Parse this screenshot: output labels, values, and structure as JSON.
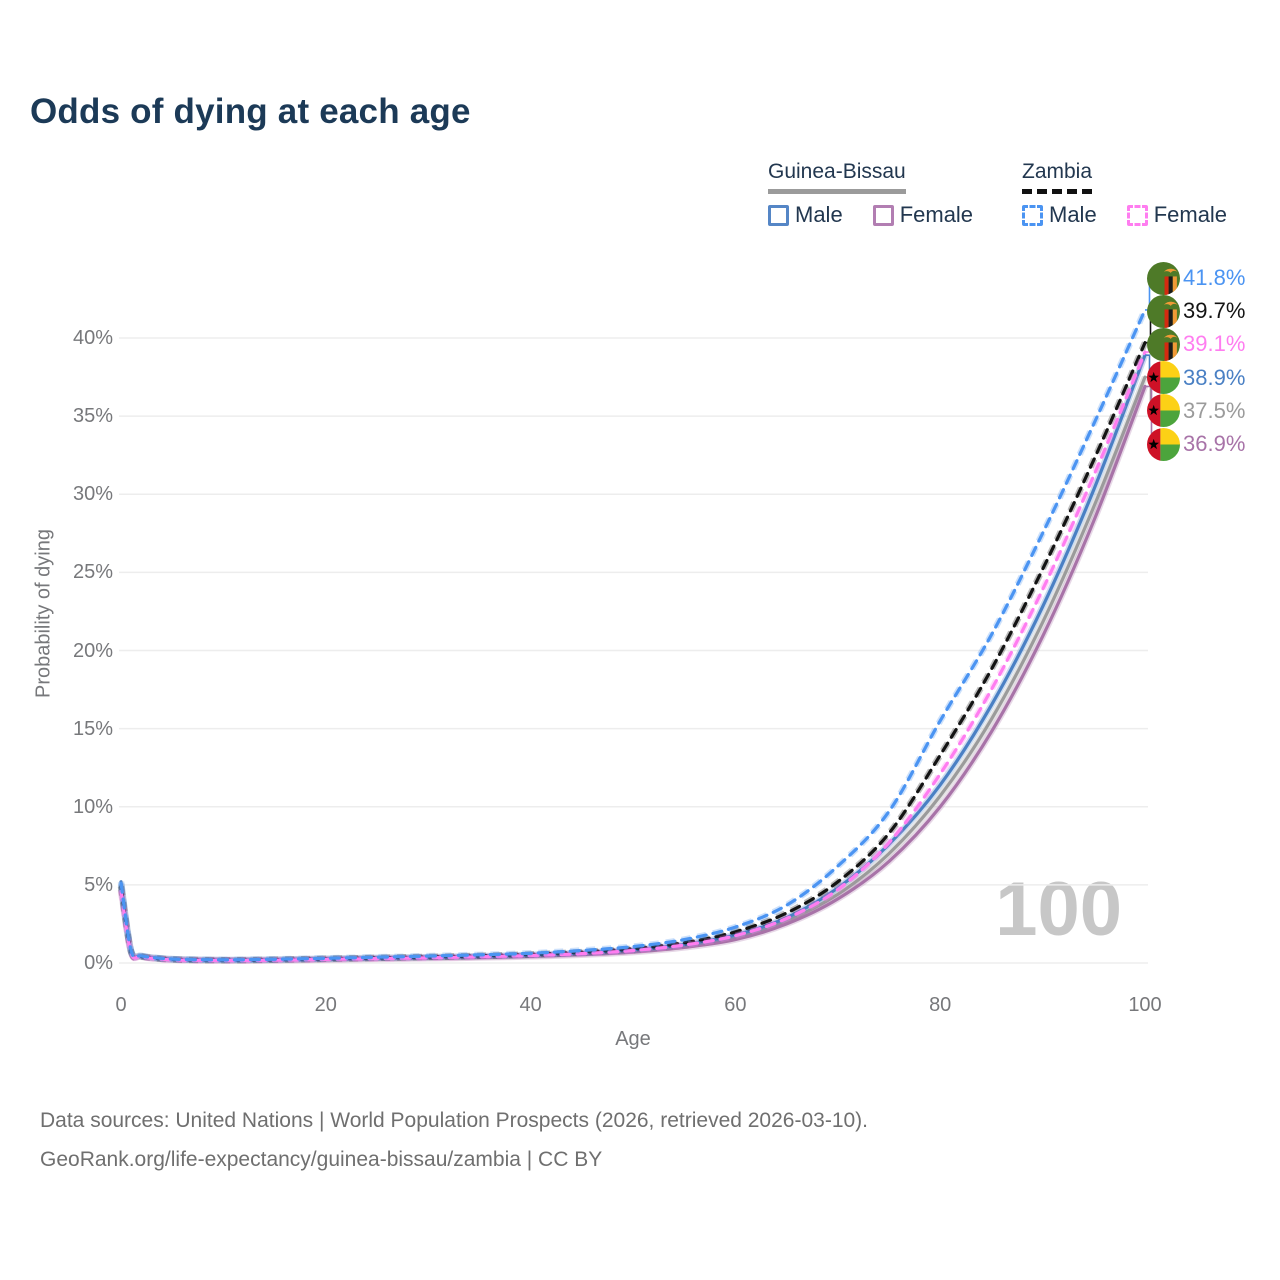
{
  "title": "Odds of dying at each age",
  "legend": {
    "groups": [
      {
        "name": "Guinea-Bissau",
        "line_style": "solid",
        "underline_color": "#9b9b9b",
        "items": [
          {
            "label": "Male",
            "color": "#5586c6",
            "dashed": false
          },
          {
            "label": "Female",
            "color": "#b27eb2",
            "dashed": false
          }
        ]
      },
      {
        "name": "Zambia",
        "line_style": "dashed",
        "underline_color": "#111111",
        "items": [
          {
            "label": "Male",
            "color": "#4b94f2",
            "dashed": true
          },
          {
            "label": "Female",
            "color": "#ff7df0",
            "dashed": true
          }
        ]
      }
    ]
  },
  "chart_data": {
    "type": "line",
    "title": "Odds of dying at each age",
    "xlabel": "Age",
    "ylabel": "Probability of dying",
    "xlim": [
      0,
      100
    ],
    "ylim": [
      0,
      44
    ],
    "grid": true,
    "legend_position": "top-right",
    "watermark": "100",
    "x_ticks": [
      {
        "value": 0,
        "label": "0"
      },
      {
        "value": 20,
        "label": "20"
      },
      {
        "value": 40,
        "label": "40"
      },
      {
        "value": 60,
        "label": "60"
      },
      {
        "value": 80,
        "label": "80"
      },
      {
        "value": 100,
        "label": "100"
      }
    ],
    "y_ticks": [
      {
        "value": 0,
        "label": "0%"
      },
      {
        "value": 5,
        "label": "5%"
      },
      {
        "value": 10,
        "label": "10%"
      },
      {
        "value": 15,
        "label": "15%"
      },
      {
        "value": 20,
        "label": "20%"
      },
      {
        "value": 25,
        "label": "25%"
      },
      {
        "value": 30,
        "label": "30%"
      },
      {
        "value": 35,
        "label": "35%"
      },
      {
        "value": 40,
        "label": "40%"
      }
    ],
    "x": [
      0,
      1,
      2,
      5,
      10,
      15,
      20,
      25,
      30,
      35,
      40,
      45,
      50,
      55,
      60,
      65,
      70,
      75,
      80,
      85,
      90,
      95,
      100
    ],
    "series": [
      {
        "id": "guinea-bissau-total",
        "country": "Guinea-Bissau",
        "sex": "Both",
        "color": "#9b9b9b",
        "dashed": false,
        "values": [
          5.0,
          0.7,
          0.42,
          0.23,
          0.18,
          0.2,
          0.25,
          0.3,
          0.35,
          0.4,
          0.48,
          0.6,
          0.78,
          1.1,
          1.65,
          2.7,
          4.4,
          7.0,
          10.7,
          15.6,
          21.8,
          29.2,
          37.5
        ]
      },
      {
        "id": "guinea-bissau-female",
        "country": "Guinea-Bissau",
        "sex": "Female",
        "color": "#a873a8",
        "dashed": false,
        "values": [
          4.7,
          0.65,
          0.4,
          0.22,
          0.17,
          0.18,
          0.22,
          0.26,
          0.3,
          0.35,
          0.42,
          0.53,
          0.7,
          1.0,
          1.5,
          2.5,
          4.1,
          6.5,
          10.0,
          14.8,
          20.9,
          28.3,
          36.9
        ]
      },
      {
        "id": "guinea-bissau-male",
        "country": "Guinea-Bissau",
        "sex": "Male",
        "color": "#4a80c4",
        "dashed": false,
        "values": [
          5.2,
          0.75,
          0.45,
          0.25,
          0.2,
          0.22,
          0.28,
          0.33,
          0.38,
          0.44,
          0.52,
          0.65,
          0.85,
          1.2,
          1.8,
          2.9,
          4.8,
          7.6,
          11.4,
          16.5,
          22.8,
          30.3,
          38.9
        ]
      },
      {
        "id": "zambia-total",
        "country": "Zambia",
        "sex": "Both",
        "color": "#141414",
        "dashed": true,
        "values": [
          4.9,
          0.7,
          0.42,
          0.23,
          0.18,
          0.21,
          0.27,
          0.33,
          0.39,
          0.46,
          0.55,
          0.7,
          0.92,
          1.3,
          2.0,
          3.2,
          5.2,
          8.3,
          13.3,
          18.8,
          25.2,
          32.2,
          39.7
        ]
      },
      {
        "id": "zambia-female",
        "country": "Zambia",
        "sex": "Female",
        "color": "#ff7df0",
        "dashed": true,
        "values": [
          4.6,
          0.6,
          0.38,
          0.2,
          0.16,
          0.18,
          0.23,
          0.28,
          0.33,
          0.4,
          0.48,
          0.6,
          0.8,
          1.15,
          1.75,
          2.85,
          4.7,
          7.7,
          12.1,
          17.5,
          23.9,
          31.2,
          39.1
        ]
      },
      {
        "id": "zambia-male",
        "country": "Zambia",
        "sex": "Male",
        "color": "#4b94f2",
        "dashed": true,
        "values": [
          5.1,
          0.75,
          0.45,
          0.25,
          0.2,
          0.24,
          0.3,
          0.37,
          0.44,
          0.52,
          0.62,
          0.8,
          1.05,
          1.5,
          2.3,
          3.7,
          6.2,
          9.7,
          15.5,
          21.0,
          27.5,
          34.5,
          41.8
        ]
      }
    ],
    "end_labels": [
      {
        "series_id": "zambia-male",
        "label": "41.8%"
      },
      {
        "series_id": "zambia-total",
        "label": "39.7%"
      },
      {
        "series_id": "zambia-female",
        "label": "39.1%"
      },
      {
        "series_id": "guinea-bissau-male",
        "label": "38.9%"
      },
      {
        "series_id": "guinea-bissau-total",
        "label": "37.5%"
      },
      {
        "series_id": "guinea-bissau-female",
        "label": "36.9%"
      }
    ],
    "flag_colors": {
      "zambia": {
        "field": "#4e7a28",
        "red": "#d42a10",
        "black": "#1a1a1a",
        "orange": "#f09a36"
      },
      "guinea_bissau": {
        "red": "#ce1126",
        "yellow": "#fcd116",
        "green": "#4ca43c",
        "star": "#000000"
      }
    }
  },
  "footer": {
    "line1": "Data sources: United Nations | World Population Prospects (2026, retrieved 2026-03-10).",
    "line2": "GeoRank.org/life-expectancy/guinea-bissau/zambia | CC BY"
  }
}
